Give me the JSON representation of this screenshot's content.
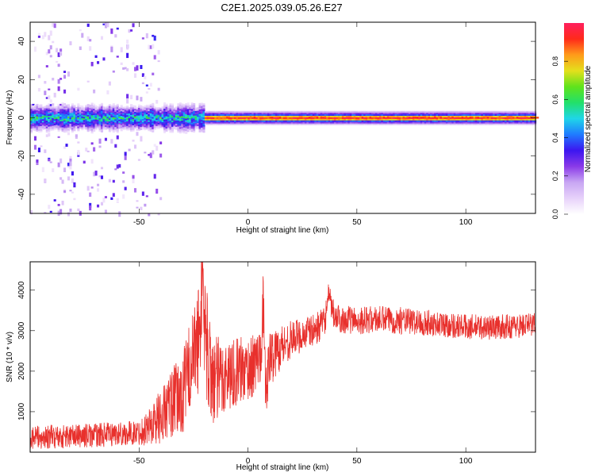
{
  "title": "C2E1.2025.039.05.26.E27",
  "colors": {
    "signal_line": "#e8302c",
    "background": "#ffffff",
    "axis": "#000000",
    "spectrogram_background": "#ffffff"
  },
  "chart_data": [
    {
      "type": "heatmap",
      "title": "C2E1.2025.039.05.26.E27",
      "xlabel": "Height of straight line (km)",
      "ylabel": "Frequency (Hz)",
      "xlim": [
        -100,
        132
      ],
      "ylim": [
        -50,
        50
      ],
      "x_ticks": [
        -50,
        0,
        50,
        100
      ],
      "y_ticks": [
        -40,
        -20,
        0,
        20,
        40
      ],
      "grid": false,
      "colorbar": {
        "label": "Normalized spectral amplitude",
        "range": [
          0,
          1
        ],
        "ticks": [
          "0.0",
          "0.2",
          "0.4",
          "0.6",
          "0.8"
        ],
        "colormap": [
          "#ffffff",
          "#e7d2fa",
          "#c8a6f3",
          "#8a3ae8",
          "#3c16f0",
          "#1f7bff",
          "#1fd6e8",
          "#22e06a",
          "#5fe31c",
          "#e4e01c",
          "#ff9b1a",
          "#ff2a1a",
          "#ff1f5e"
        ]
      },
      "description_values": {
        "band_center_hz": 0,
        "noise_region_x": [
          -100,
          -40
        ],
        "narrow_band_start_x": -20
      }
    },
    {
      "type": "line",
      "xlabel": "Height of straight line (km)",
      "ylabel": "SNR (10 * v/v)",
      "xlim": [
        -100,
        132
      ],
      "ylim": [
        0,
        4700
      ],
      "x_ticks": [
        -50,
        0,
        50,
        100
      ],
      "y_ticks": [
        1000,
        2000,
        3000,
        4000
      ],
      "grid": false,
      "series": [
        {
          "color": "#e8302c",
          "points": [
            [
              -100,
              350
            ],
            [
              -90,
              380
            ],
            [
              -80,
              400
            ],
            [
              -70,
              420
            ],
            [
              -60,
              450
            ],
            [
              -50,
              480
            ],
            [
              -45,
              650
            ],
            [
              -40,
              900
            ],
            [
              -35,
              1200
            ],
            [
              -30,
              1400
            ],
            [
              -27,
              2100
            ],
            [
              -24,
              2500
            ],
            [
              -22,
              3000
            ],
            [
              -21,
              4700
            ],
            [
              -20,
              3200
            ],
            [
              -18,
              2200
            ],
            [
              -15,
              1700
            ],
            [
              -10,
              1900
            ],
            [
              -5,
              2000
            ],
            [
              0,
              2050
            ],
            [
              3,
              2150
            ],
            [
              6,
              2500
            ],
            [
              7,
              3800
            ],
            [
              8,
              1500
            ],
            [
              10,
              2300
            ],
            [
              15,
              2600
            ],
            [
              20,
              2800
            ],
            [
              25,
              2900
            ],
            [
              30,
              3000
            ],
            [
              35,
              3200
            ],
            [
              37,
              3800
            ],
            [
              40,
              3300
            ],
            [
              50,
              3250
            ],
            [
              60,
              3280
            ],
            [
              70,
              3250
            ],
            [
              80,
              3200
            ],
            [
              90,
              3150
            ],
            [
              100,
              3100
            ],
            [
              110,
              3080
            ],
            [
              120,
              3100
            ],
            [
              130,
              3150
            ],
            [
              132,
              3200
            ]
          ],
          "noise_amplitude": [
            [
              -100,
              300
            ],
            [
              -50,
              300
            ],
            [
              -40,
              700
            ],
            [
              -25,
              1200
            ],
            [
              -20,
              1500
            ],
            [
              -10,
              900
            ],
            [
              0,
              800
            ],
            [
              10,
              700
            ],
            [
              20,
              450
            ],
            [
              30,
              400
            ],
            [
              40,
              350
            ],
            [
              132,
              300
            ]
          ]
        }
      ]
    }
  ]
}
